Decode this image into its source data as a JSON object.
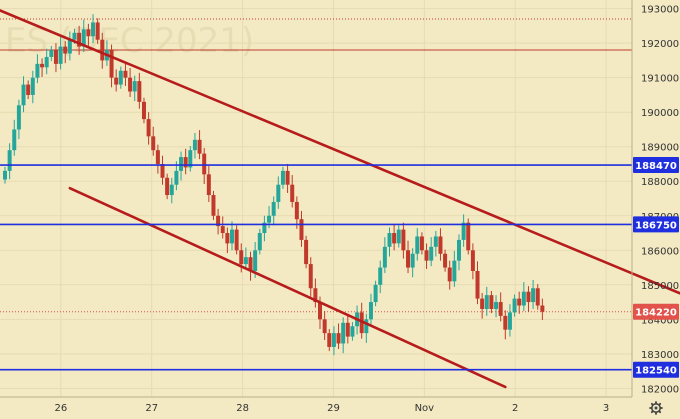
{
  "watermark": "ES (DEC 2021)",
  "colors": {
    "background": "#f3eac4",
    "up": "#26a69a",
    "down": "#c0392b",
    "level_line": "#1f2fe0",
    "trend_line": "#b71c1c",
    "last_price": "#e0524a",
    "thin_line": "#c0392b"
  },
  "chart_data": {
    "type": "candlestick",
    "title": "",
    "xlabel": "",
    "ylabel": "",
    "ylim": [
      181750,
      193250
    ],
    "y_ticks": [
      182000,
      183000,
      184000,
      185000,
      186000,
      187000,
      188000,
      189000,
      190000,
      191000,
      192000,
      193000
    ],
    "y_tick_labels": [
      "182000",
      "183000",
      "184000",
      "185000",
      "186000",
      "187000",
      "188000",
      "189000",
      "190000",
      "191000",
      "192000",
      "193000"
    ],
    "x_ticks": [
      {
        "label": "26",
        "index": 14
      },
      {
        "label": "27",
        "index": 36
      },
      {
        "label": "28",
        "index": 58
      },
      {
        "label": "29",
        "index": 80
      },
      {
        "label": "Nov",
        "index": 102
      },
      {
        "label": "2",
        "index": 124
      },
      {
        "label": "3",
        "index": 146
      }
    ],
    "horizontal_levels": [
      {
        "value": 188470,
        "label": "188470",
        "color": "#1f2fe0"
      },
      {
        "value": 186750,
        "label": "186750",
        "color": "#1f2fe0"
      },
      {
        "value": 182540,
        "label": "182540",
        "color": "#1f2fe0"
      }
    ],
    "thin_levels": [
      192700,
      191800
    ],
    "last_price": {
      "value": 184220,
      "label": "184220"
    },
    "trendlines": [
      {
        "from": [
          -2,
          193000
        ],
        "to": [
          161,
          183900
        ]
      },
      {
        "from": [
          14,
          187800
        ],
        "to": [
          108,
          182040
        ]
      }
    ],
    "candle_closes": [
      188300,
      188900,
      189500,
      190200,
      190800,
      190500,
      191000,
      191400,
      191300,
      191600,
      191800,
      191400,
      191900,
      191700,
      192100,
      192300,
      191900,
      192400,
      192200,
      192600,
      192100,
      191500,
      191800,
      191000,
      190800,
      191200,
      191000,
      190600,
      190900,
      190300,
      189800,
      189300,
      188900,
      188500,
      188100,
      187600,
      187900,
      188300,
      188700,
      188400,
      188900,
      189200,
      188800,
      188200,
      187600,
      187000,
      186700,
      186500,
      186200,
      186600,
      186000,
      185600,
      185800,
      185400,
      186000,
      186500,
      186800,
      187000,
      187400,
      187900,
      188300,
      187900,
      187400,
      186900,
      186300,
      185600,
      184900,
      184500,
      184000,
      183600,
      183200,
      183600,
      183300,
      183900,
      183500,
      183800,
      184200,
      183600,
      184000,
      184500,
      185000,
      185500,
      186100,
      186500,
      186200,
      186600,
      186000,
      185500,
      185900,
      186400,
      186000,
      185700,
      186100,
      186400,
      185900,
      185500,
      185100,
      185700,
      186300,
      186800,
      186000,
      185400,
      184600,
      184300,
      184700,
      184300,
      184500,
      184100,
      183700,
      184200,
      184600,
      184400,
      184800,
      184500,
      184900,
      184400,
      184220
    ],
    "candle_x_start": 0,
    "candle_x_step": 1.5
  }
}
